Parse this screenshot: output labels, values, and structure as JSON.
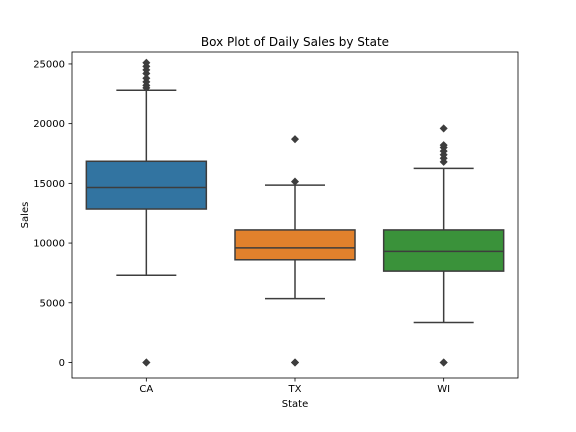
{
  "chart_data": {
    "type": "box",
    "title": "Box Plot of Daily Sales by State",
    "xlabel": "State",
    "ylabel": "Sales",
    "categories": [
      "CA",
      "TX",
      "WI"
    ],
    "ylim": [
      -1300,
      26000
    ],
    "yticks": [
      0,
      5000,
      10000,
      15000,
      20000,
      25000
    ],
    "grid": false,
    "legend": "none",
    "series": [
      {
        "category": "CA",
        "color": "#3274a1",
        "min": 7300,
        "q1": 12850,
        "median": 14650,
        "q3": 16850,
        "max": 22800,
        "outliers": [
          0,
          0,
          23000,
          23200,
          23500,
          23800,
          24200,
          24500,
          24800,
          25100
        ]
      },
      {
        "category": "TX",
        "color": "#e1812c",
        "min": 5350,
        "q1": 8600,
        "median": 9600,
        "q3": 11100,
        "max": 14850,
        "outliers": [
          0,
          0,
          15150,
          18700
        ]
      },
      {
        "category": "WI",
        "color": "#3a923a",
        "min": 3350,
        "q1": 7650,
        "median": 9300,
        "q3": 11100,
        "max": 16250,
        "outliers": [
          0,
          0,
          16800,
          17100,
          17400,
          17700,
          18000,
          18200,
          19600
        ]
      }
    ]
  }
}
